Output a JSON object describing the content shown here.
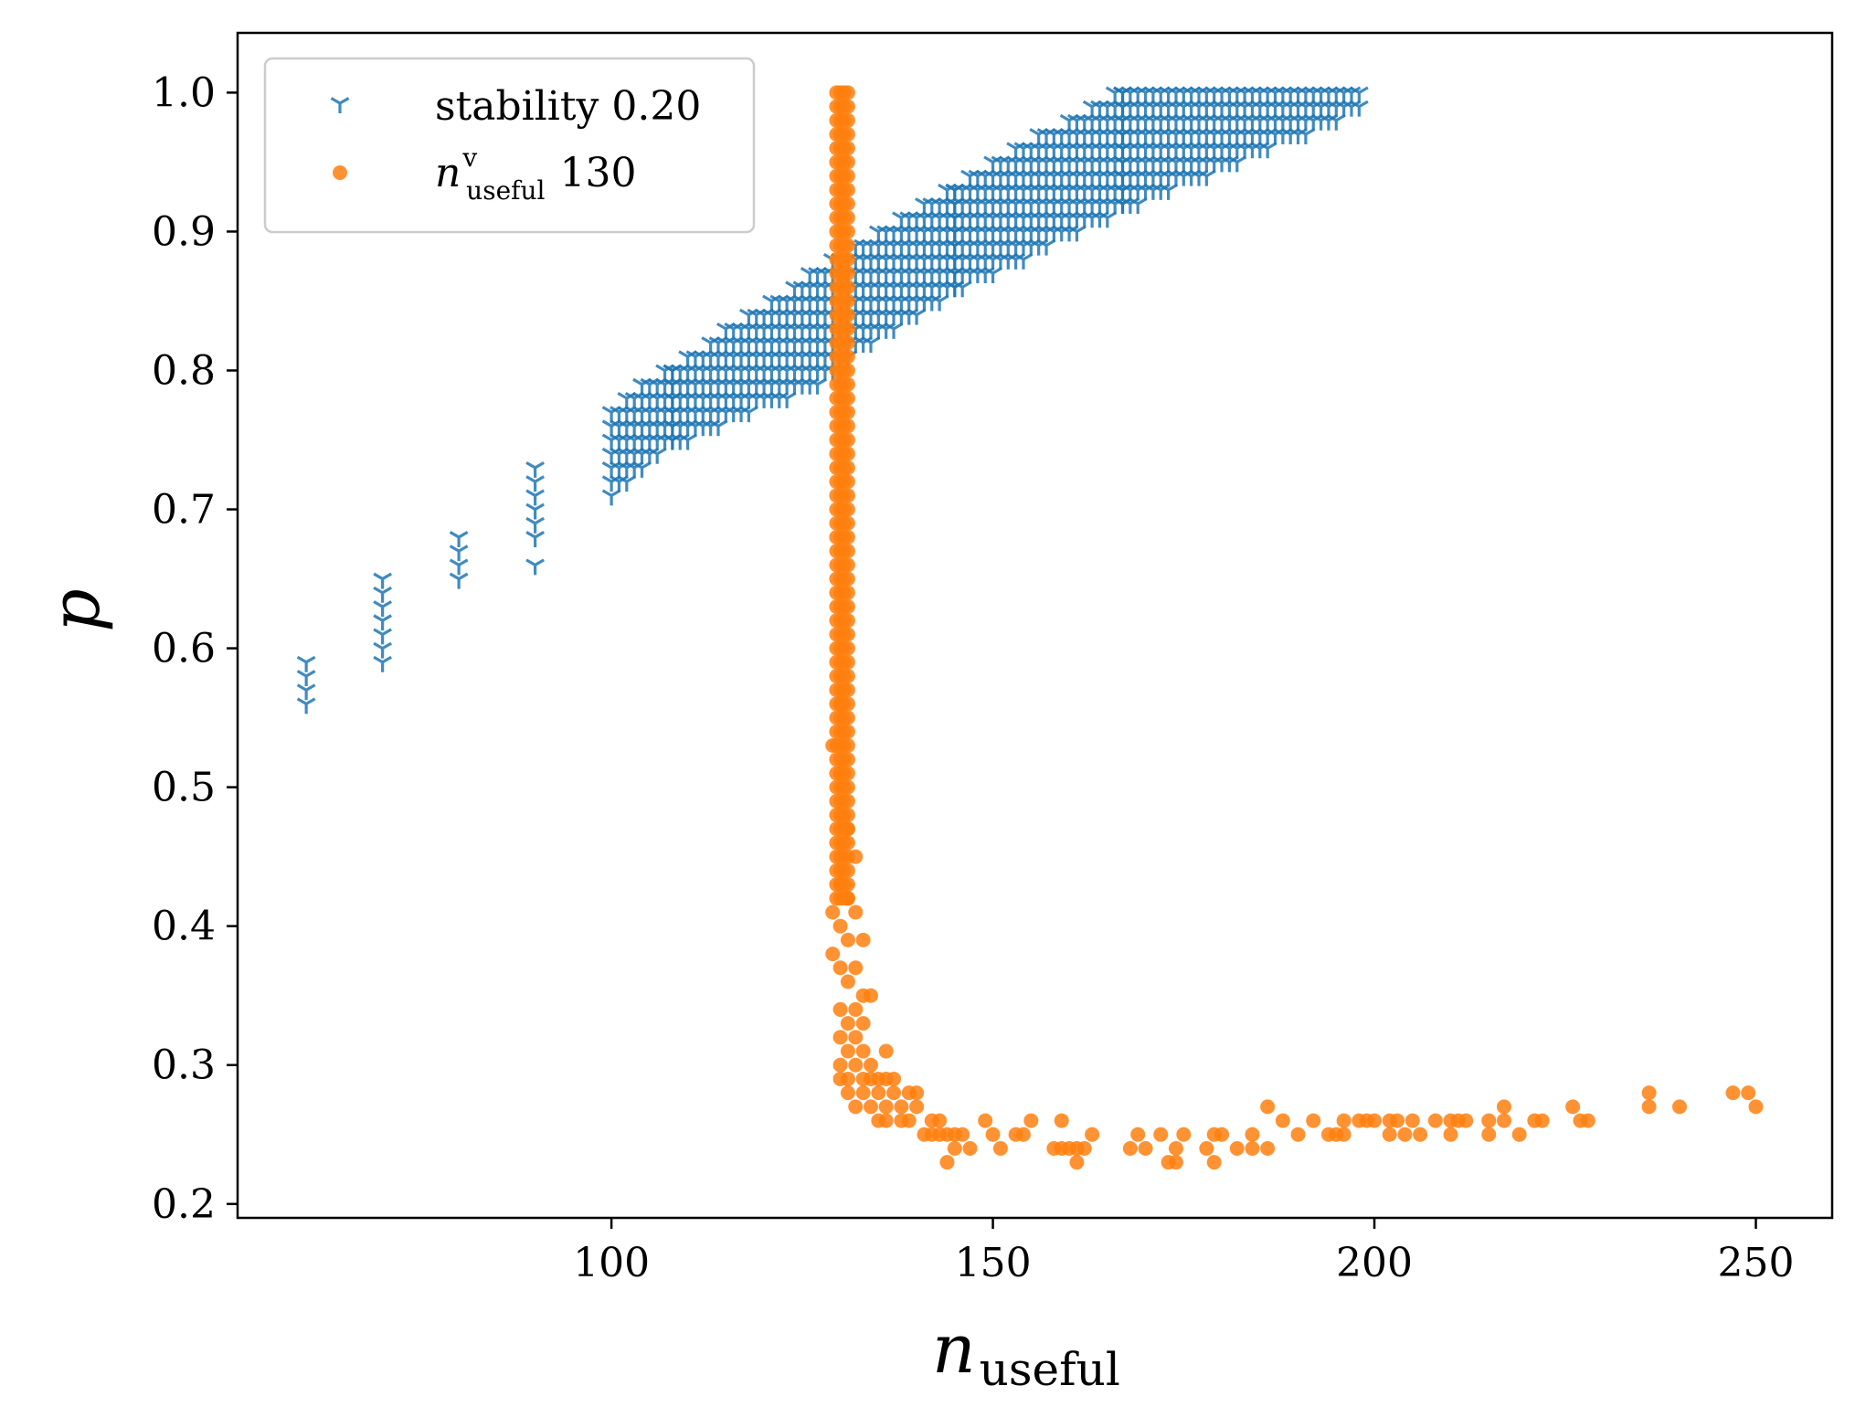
{
  "chart_data": {
    "type": "scatter",
    "xlabel": "n",
    "xlabel_subscript": "useful",
    "ylabel": "p",
    "xlim": [
      51,
      260
    ],
    "ylim": [
      0.19,
      1.043
    ],
    "xticks": [
      100,
      150,
      200,
      250
    ],
    "xtick_labels": [
      "100",
      "150",
      "200",
      "250"
    ],
    "yticks": [
      0.2,
      0.3,
      0.4,
      0.5,
      0.6,
      0.7,
      0.8,
      0.9,
      1.0
    ],
    "ytick_labels": [
      "0.2",
      "0.3",
      "0.4",
      "0.5",
      "0.6",
      "0.7",
      "0.8",
      "0.9",
      "1.0"
    ],
    "legend_position": "upper-left",
    "series": [
      {
        "name": "stability 0.20",
        "legend_label": "stability 0.20",
        "marker": "tri-down",
        "color": "#1f77b4",
        "columns": [
          {
            "x": 60,
            "ps": [
              0.56,
              0.57,
              0.58,
              0.59
            ]
          },
          {
            "x": 70,
            "ps": [
              0.59,
              0.6,
              0.61,
              0.62,
              0.63,
              0.64,
              0.65
            ]
          },
          {
            "x": 80,
            "ps": [
              0.65,
              0.66,
              0.67,
              0.68
            ]
          },
          {
            "x": 90,
            "ps": [
              0.66,
              0.68,
              0.69,
              0.7,
              0.71,
              0.72,
              0.73
            ]
          }
        ],
        "bands": [
          {
            "x_from": 100,
            "x_to": 108,
            "p_low_at_start": 0.71,
            "p_low_at_end": 0.75,
            "p_high_at_start": 0.77,
            "p_high_at_end": 0.8
          },
          {
            "x_from": 108,
            "x_to": 130,
            "p_low_at_start": 0.75,
            "p_low_at_end": 0.8,
            "p_high_at_start": 0.8,
            "p_high_at_end": 0.88
          },
          {
            "x_from": 130,
            "x_to": 145,
            "p_low_at_start": 0.81,
            "p_low_at_end": 0.86,
            "p_high_at_start": 0.88,
            "p_high_at_end": 0.93
          },
          {
            "x_from": 145,
            "x_to": 167,
            "p_low_at_start": 0.86,
            "p_low_at_end": 0.92,
            "p_high_at_start": 0.93,
            "p_high_at_end": 1.0
          },
          {
            "x_from": 167,
            "x_to": 198,
            "p_low_at_start": 0.92,
            "p_low_at_end": 0.99,
            "p_high_at_start": 1.0,
            "p_high_at_end": 1.0
          }
        ]
      },
      {
        "name": "n^v_useful 130",
        "legend_label_main": "n",
        "legend_label_sup": "v",
        "legend_label_sub": "useful",
        "legend_label_value": "130",
        "marker": "circle",
        "color": "#ff7f0e",
        "vertical_core": {
          "x_from": 129.5,
          "x_to": 131,
          "p_from": 0.42,
          "p_to": 1.0
        },
        "points": [
          [
            130,
            0.56
          ],
          [
            129,
            0.53
          ],
          [
            130,
            0.51
          ],
          [
            131,
            0.47
          ],
          [
            132,
            0.45
          ],
          [
            130,
            0.43
          ],
          [
            131,
            0.42
          ],
          [
            129,
            0.41
          ],
          [
            132,
            0.41
          ],
          [
            130,
            0.4
          ],
          [
            131,
            0.39
          ],
          [
            133,
            0.39
          ],
          [
            129,
            0.38
          ],
          [
            130,
            0.37
          ],
          [
            132,
            0.37
          ],
          [
            131,
            0.36
          ],
          [
            133,
            0.35
          ],
          [
            134,
            0.35
          ],
          [
            130,
            0.34
          ],
          [
            132,
            0.34
          ],
          [
            131,
            0.33
          ],
          [
            133,
            0.33
          ],
          [
            130,
            0.32
          ],
          [
            132,
            0.32
          ],
          [
            131,
            0.31
          ],
          [
            133,
            0.31
          ],
          [
            130,
            0.3
          ],
          [
            132,
            0.3
          ],
          [
            134,
            0.3
          ],
          [
            136,
            0.31
          ],
          [
            130,
            0.29
          ],
          [
            131,
            0.29
          ],
          [
            133,
            0.29
          ],
          [
            134,
            0.29
          ],
          [
            135,
            0.29
          ],
          [
            136,
            0.29
          ],
          [
            137,
            0.29
          ],
          [
            131,
            0.28
          ],
          [
            133,
            0.28
          ],
          [
            135,
            0.28
          ],
          [
            137,
            0.28
          ],
          [
            139,
            0.28
          ],
          [
            140,
            0.28
          ],
          [
            132,
            0.27
          ],
          [
            134,
            0.27
          ],
          [
            136,
            0.27
          ],
          [
            138,
            0.27
          ],
          [
            140,
            0.27
          ],
          [
            135,
            0.26
          ],
          [
            136,
            0.26
          ],
          [
            138,
            0.26
          ],
          [
            139,
            0.26
          ],
          [
            142,
            0.26
          ],
          [
            143,
            0.26
          ],
          [
            141,
            0.25
          ],
          [
            142,
            0.25
          ],
          [
            143,
            0.25
          ],
          [
            144,
            0.25
          ],
          [
            145,
            0.25
          ],
          [
            146,
            0.25
          ],
          [
            145,
            0.24
          ],
          [
            147,
            0.24
          ],
          [
            144,
            0.23
          ],
          [
            149,
            0.26
          ],
          [
            150,
            0.25
          ],
          [
            151,
            0.24
          ],
          [
            153,
            0.25
          ],
          [
            154,
            0.25
          ],
          [
            155,
            0.26
          ],
          [
            158,
            0.24
          ],
          [
            159,
            0.26
          ],
          [
            159,
            0.24
          ],
          [
            160,
            0.24
          ],
          [
            161,
            0.24
          ],
          [
            161,
            0.23
          ],
          [
            162,
            0.24
          ],
          [
            163,
            0.25
          ],
          [
            168,
            0.24
          ],
          [
            169,
            0.25
          ],
          [
            170,
            0.24
          ],
          [
            172,
            0.25
          ],
          [
            173,
            0.23
          ],
          [
            174,
            0.24
          ],
          [
            174,
            0.23
          ],
          [
            175,
            0.25
          ],
          [
            178,
            0.24
          ],
          [
            179,
            0.25
          ],
          [
            179,
            0.23
          ],
          [
            180,
            0.25
          ],
          [
            182,
            0.24
          ],
          [
            184,
            0.25
          ],
          [
            184,
            0.24
          ],
          [
            186,
            0.24
          ],
          [
            186,
            0.27
          ],
          [
            188,
            0.26
          ],
          [
            190,
            0.25
          ],
          [
            192,
            0.26
          ],
          [
            194,
            0.25
          ],
          [
            195,
            0.25
          ],
          [
            196,
            0.26
          ],
          [
            196,
            0.25
          ],
          [
            198,
            0.26
          ],
          [
            199,
            0.26
          ],
          [
            200,
            0.26
          ],
          [
            202,
            0.25
          ],
          [
            202,
            0.26
          ],
          [
            203,
            0.26
          ],
          [
            204,
            0.25
          ],
          [
            205,
            0.26
          ],
          [
            206,
            0.25
          ],
          [
            208,
            0.26
          ],
          [
            210,
            0.25
          ],
          [
            210,
            0.26
          ],
          [
            211,
            0.26
          ],
          [
            212,
            0.26
          ],
          [
            215,
            0.26
          ],
          [
            215,
            0.25
          ],
          [
            217,
            0.26
          ],
          [
            217,
            0.27
          ],
          [
            219,
            0.25
          ],
          [
            221,
            0.26
          ],
          [
            222,
            0.26
          ],
          [
            226,
            0.27
          ],
          [
            227,
            0.26
          ],
          [
            228,
            0.26
          ],
          [
            236,
            0.28
          ],
          [
            236,
            0.27
          ],
          [
            240,
            0.27
          ],
          [
            247,
            0.28
          ],
          [
            249,
            0.28
          ],
          [
            250,
            0.27
          ]
        ]
      }
    ]
  }
}
